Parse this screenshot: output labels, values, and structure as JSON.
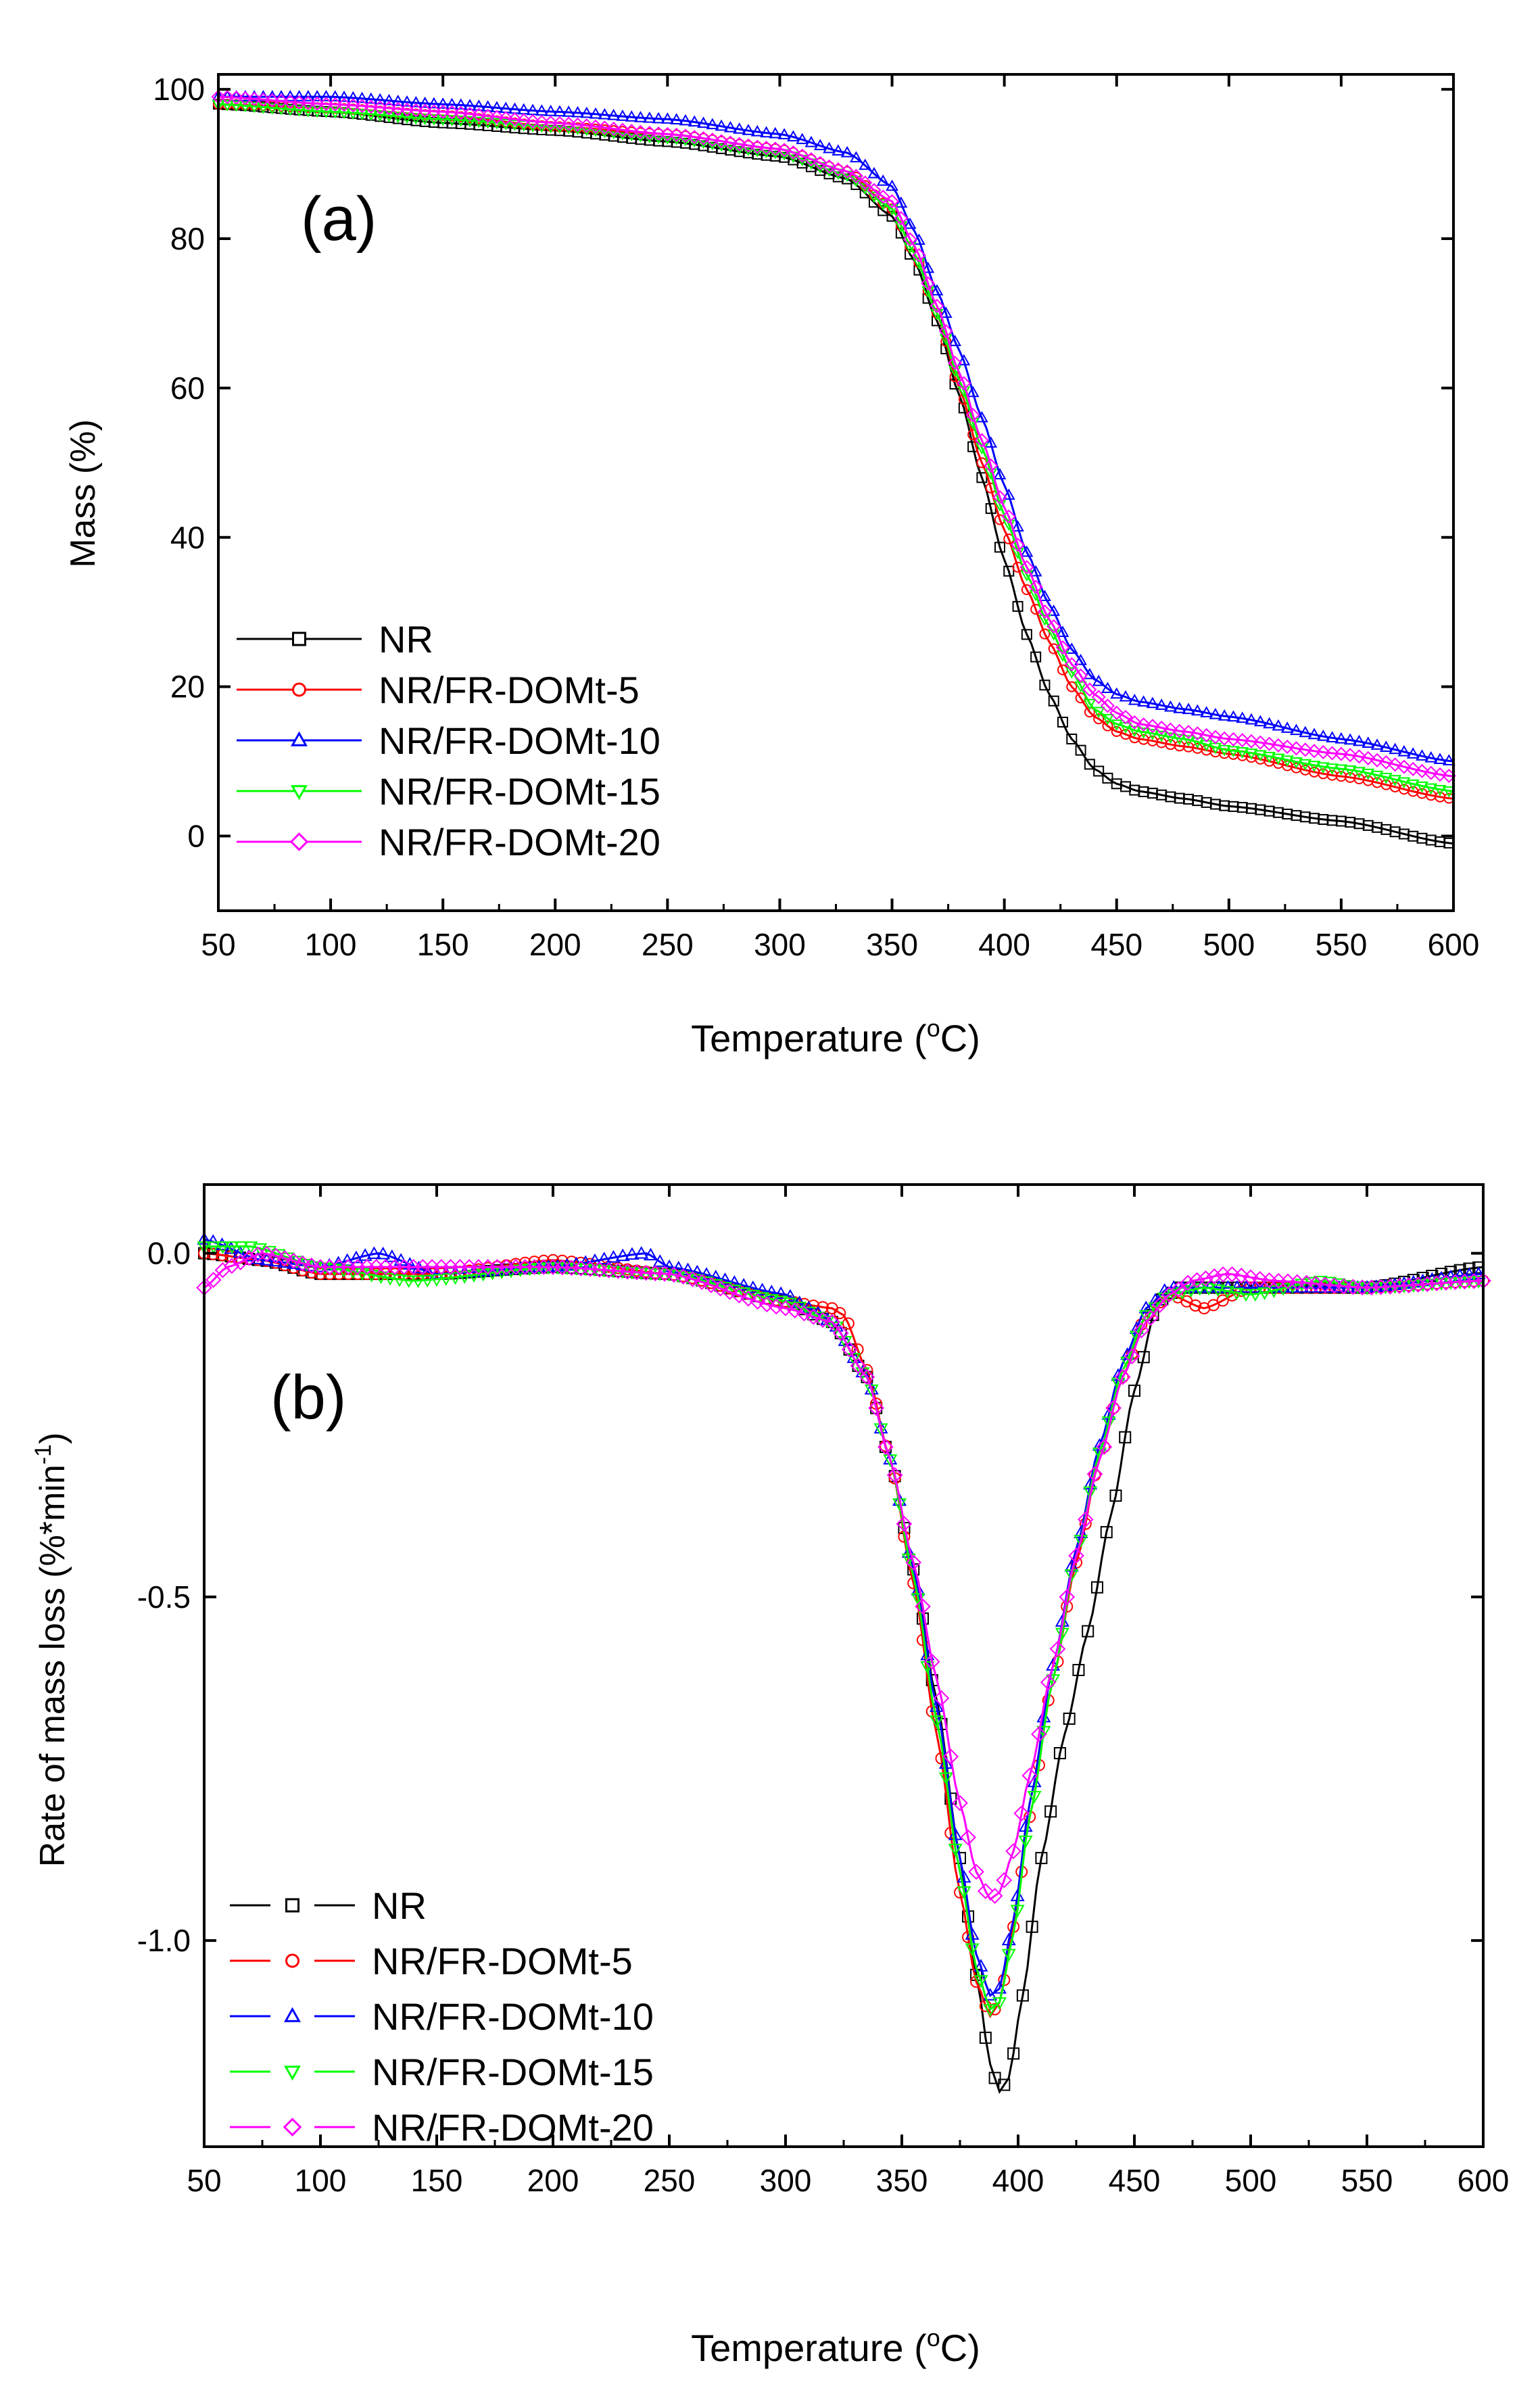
{
  "chart_data": [
    {
      "type": "line",
      "panel_label": "(a)",
      "xlabel": "Temperature (",
      "xlabel_sup": "o",
      "xlabel_end": "C)",
      "ylabel": "Mass (%)",
      "xlim": [
        50,
        600
      ],
      "ylim": [
        -10,
        102
      ],
      "xticks": [
        50,
        100,
        150,
        200,
        250,
        300,
        350,
        400,
        450,
        500,
        550,
        600
      ],
      "yticks": [
        0,
        20,
        40,
        60,
        80,
        100
      ],
      "legend_position": "bottom-left",
      "series": [
        {
          "name": "NR",
          "color": "#000000",
          "marker": "square",
          "x": [
            50,
            100,
            150,
            200,
            250,
            300,
            330,
            350,
            360,
            370,
            380,
            390,
            400,
            410,
            420,
            430,
            440,
            450,
            460,
            480,
            500,
            550,
            600
          ],
          "y": [
            98,
            97,
            95.5,
            94.5,
            93,
            91,
            88,
            83,
            77,
            69,
            59,
            48,
            37,
            27,
            19,
            13,
            9,
            7,
            6,
            5,
            4,
            2,
            -1
          ]
        },
        {
          "name": "NR/FR-DOMt-5",
          "color": "#ff0000",
          "marker": "circle",
          "x": [
            50,
            100,
            150,
            200,
            250,
            300,
            330,
            350,
            360,
            370,
            380,
            390,
            400,
            410,
            420,
            430,
            440,
            450,
            460,
            480,
            500,
            550,
            600
          ],
          "y": [
            98,
            97.5,
            96.5,
            95,
            94,
            92,
            89,
            84,
            78,
            70,
            60,
            50,
            41,
            33,
            26,
            20,
            16,
            14,
            13,
            12,
            11,
            8,
            5
          ]
        },
        {
          "name": "NR/FR-DOMt-10",
          "color": "#0000ff",
          "marker": "triangle-up",
          "x": [
            50,
            100,
            150,
            200,
            250,
            300,
            330,
            350,
            360,
            370,
            380,
            390,
            400,
            410,
            420,
            430,
            440,
            450,
            460,
            480,
            500,
            550,
            600
          ],
          "y": [
            99,
            99,
            98,
            97,
            96,
            94,
            91.5,
            87,
            81,
            73,
            65,
            56,
            47,
            38,
            31,
            25,
            21,
            19,
            18,
            17,
            16,
            13,
            10
          ]
        },
        {
          "name": "NR/FR-DOMt-15",
          "color": "#00ff00",
          "marker": "triangle-down",
          "x": [
            50,
            100,
            150,
            200,
            250,
            300,
            330,
            350,
            360,
            370,
            380,
            390,
            400,
            410,
            420,
            430,
            440,
            450,
            460,
            480,
            500,
            550,
            600
          ],
          "y": [
            98,
            97,
            96,
            95,
            93.5,
            91.5,
            88.5,
            84,
            78,
            70,
            61,
            52,
            43,
            35,
            28,
            22,
            17,
            15,
            14,
            13,
            11.5,
            9,
            6
          ]
        },
        {
          "name": "NR/FR-DOMt-20",
          "color": "#ff00ff",
          "marker": "diamond",
          "x": [
            50,
            100,
            150,
            200,
            250,
            300,
            330,
            350,
            360,
            370,
            380,
            390,
            400,
            410,
            420,
            430,
            440,
            450,
            460,
            480,
            500,
            550,
            600
          ],
          "y": [
            99,
            98,
            97,
            95.5,
            94,
            92,
            89,
            85,
            79,
            71,
            62,
            53,
            44,
            36,
            29,
            23,
            19,
            16.5,
            15,
            14,
            13,
            11,
            8
          ]
        }
      ]
    },
    {
      "type": "line",
      "panel_label": "(b)",
      "xlabel": "Temperature (",
      "xlabel_sup": "o",
      "xlabel_end": "C)",
      "ylabel": "Rate of mass loss (%*min",
      "ylabel_sup": "-1",
      "ylabel_end": ")",
      "xlim": [
        50,
        600
      ],
      "ylim": [
        -1.3,
        0.1
      ],
      "xticks": [
        50,
        100,
        150,
        200,
        250,
        300,
        350,
        400,
        450,
        500,
        550,
        600
      ],
      "yticks": [
        0.0,
        -0.5,
        -1.0
      ],
      "ytick_labels": [
        "0.0",
        "-0.5",
        "-1.0"
      ],
      "legend_position": "bottom-left",
      "series": [
        {
          "name": "NR",
          "color": "#000000",
          "marker": "square",
          "x": [
            50,
            75,
            100,
            150,
            200,
            250,
            300,
            320,
            335,
            345,
            355,
            365,
            375,
            382,
            388,
            392,
            396,
            402,
            410,
            420,
            430,
            440,
            450,
            460,
            470,
            500,
            550,
            600
          ],
          "y": [
            0.0,
            -0.01,
            -0.03,
            -0.03,
            -0.02,
            -0.03,
            -0.07,
            -0.1,
            -0.18,
            -0.3,
            -0.46,
            -0.65,
            -0.88,
            -1.05,
            -1.18,
            -1.22,
            -1.2,
            -1.08,
            -0.88,
            -0.7,
            -0.55,
            -0.38,
            -0.2,
            -0.07,
            -0.05,
            -0.05,
            -0.05,
            -0.02
          ]
        },
        {
          "name": "NR/FR-DOMt-5",
          "color": "#ff0000",
          "marker": "circle",
          "x": [
            50,
            75,
            100,
            150,
            200,
            250,
            300,
            320,
            325,
            335,
            345,
            355,
            365,
            375,
            382,
            388,
            392,
            398,
            405,
            415,
            425,
            435,
            445,
            455,
            465,
            480,
            500,
            550,
            600
          ],
          "y": [
            0.0,
            -0.01,
            -0.03,
            -0.03,
            -0.01,
            -0.03,
            -0.07,
            -0.08,
            -0.09,
            -0.17,
            -0.3,
            -0.48,
            -0.7,
            -0.93,
            -1.06,
            -1.11,
            -1.09,
            -0.98,
            -0.82,
            -0.62,
            -0.45,
            -0.3,
            -0.18,
            -0.09,
            -0.06,
            -0.08,
            -0.05,
            -0.05,
            -0.04
          ]
        },
        {
          "name": "NR/FR-DOMt-10",
          "color": "#0000ff",
          "marker": "triangle-up",
          "x": [
            50,
            75,
            100,
            125,
            150,
            200,
            240,
            250,
            300,
            310,
            320,
            335,
            345,
            355,
            365,
            375,
            382,
            388,
            392,
            398,
            405,
            415,
            425,
            435,
            445,
            455,
            465,
            500,
            550,
            600
          ],
          "y": [
            0.02,
            -0.01,
            -0.02,
            0.0,
            -0.03,
            -0.02,
            0.0,
            -0.02,
            -0.06,
            -0.08,
            -0.1,
            -0.18,
            -0.3,
            -0.46,
            -0.66,
            -0.88,
            -1.02,
            -1.08,
            -1.07,
            -0.97,
            -0.8,
            -0.6,
            -0.43,
            -0.28,
            -0.16,
            -0.08,
            -0.05,
            -0.05,
            -0.05,
            -0.03
          ]
        },
        {
          "name": "NR/FR-DOMt-15",
          "color": "#00ff00",
          "marker": "triangle-down",
          "x": [
            50,
            70,
            100,
            140,
            200,
            250,
            300,
            320,
            335,
            345,
            355,
            365,
            375,
            382,
            388,
            392,
            398,
            405,
            415,
            425,
            435,
            445,
            455,
            465,
            480,
            500,
            530,
            550,
            600
          ],
          "y": [
            0.01,
            0.01,
            -0.02,
            -0.04,
            -0.02,
            -0.03,
            -0.07,
            -0.1,
            -0.18,
            -0.3,
            -0.47,
            -0.68,
            -0.9,
            -1.04,
            -1.1,
            -1.09,
            -0.99,
            -0.82,
            -0.62,
            -0.44,
            -0.29,
            -0.17,
            -0.09,
            -0.06,
            -0.05,
            -0.06,
            -0.04,
            -0.05,
            -0.04
          ]
        },
        {
          "name": "NR/FR-DOMt-20",
          "color": "#ff00ff",
          "marker": "diamond",
          "x": [
            50,
            60,
            75,
            100,
            150,
            200,
            250,
            300,
            320,
            335,
            345,
            355,
            365,
            375,
            382,
            388,
            392,
            398,
            405,
            415,
            425,
            435,
            445,
            455,
            465,
            475,
            490,
            510,
            550,
            600
          ],
          "y": [
            -0.05,
            -0.02,
            0.0,
            -0.02,
            -0.02,
            -0.02,
            -0.03,
            -0.08,
            -0.1,
            -0.18,
            -0.3,
            -0.45,
            -0.62,
            -0.8,
            -0.9,
            -0.94,
            -0.93,
            -0.87,
            -0.76,
            -0.6,
            -0.44,
            -0.3,
            -0.18,
            -0.1,
            -0.06,
            -0.04,
            -0.03,
            -0.04,
            -0.05,
            -0.04
          ]
        }
      ]
    }
  ]
}
